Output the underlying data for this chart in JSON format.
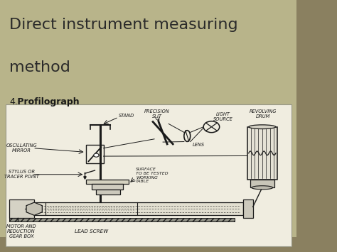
{
  "bg_color": "#b8b48a",
  "right_bar_color": "#8a8060",
  "panel_color": "#e8e4d0",
  "title_line1": "Direct instrument measuring",
  "title_line2": "method",
  "subtitle_num": "4.",
  "subtitle_bold": " Profilograph",
  "title_color": "#2a2a2a",
  "subtitle_color": "#1a1a1a",
  "diagram_bg": "#f0ede0",
  "ink": "#1a1a1a",
  "fig_w": 4.74,
  "fig_h": 3.55,
  "dpi": 100,
  "title_fs": 16,
  "subtitle_fs": 9,
  "label_fs": 4.8
}
